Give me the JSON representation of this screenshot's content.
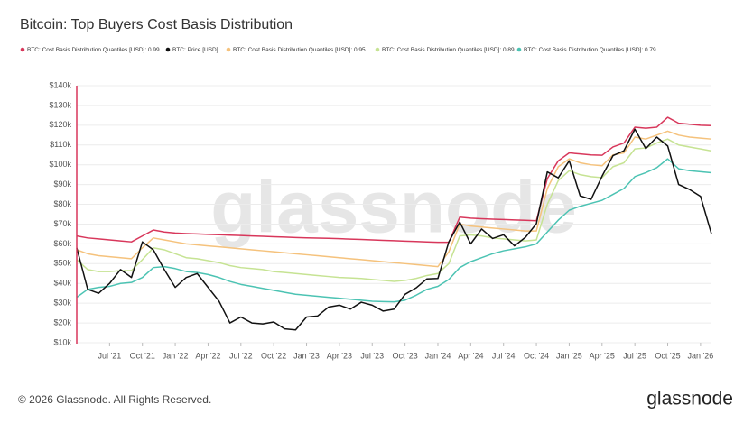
{
  "chart_data": {
    "type": "line",
    "title": "Bitcoin: Top Buyers Cost Basis Distribution",
    "watermark": "glassnode",
    "x": [
      "2021-04",
      "2021-05",
      "2021-06",
      "2021-07",
      "2021-08",
      "2021-09",
      "2021-10",
      "2021-11",
      "2021-12",
      "2022-01",
      "2022-02",
      "2022-03",
      "2022-04",
      "2022-05",
      "2022-06",
      "2022-07",
      "2022-08",
      "2022-09",
      "2022-10",
      "2022-11",
      "2022-12",
      "2023-01",
      "2023-02",
      "2023-03",
      "2023-04",
      "2023-05",
      "2023-06",
      "2023-07",
      "2023-08",
      "2023-09",
      "2023-10",
      "2023-11",
      "2023-12",
      "2024-01",
      "2024-02",
      "2024-03",
      "2024-04",
      "2024-05",
      "2024-06",
      "2024-07",
      "2024-08",
      "2024-09",
      "2024-10",
      "2024-11",
      "2024-12",
      "2025-01",
      "2025-02",
      "2025-03",
      "2025-04",
      "2025-05",
      "2025-06",
      "2025-07",
      "2025-08",
      "2025-09",
      "2025-10",
      "2025-11",
      "2025-12",
      "2026-01",
      "2026-02"
    ],
    "series": [
      {
        "name": "BTC: Cost Basis Distribution Quantiles [USD]: 0.99",
        "color": "#d8375b",
        "values": [
          64000,
          63000,
          62500,
          62000,
          61500,
          61000,
          64000,
          67000,
          66000,
          65500,
          65200,
          65000,
          64800,
          64600,
          64400,
          64200,
          64000,
          63800,
          63600,
          63400,
          63200,
          63000,
          62900,
          62800,
          62600,
          62400,
          62200,
          62000,
          61800,
          61600,
          61400,
          61200,
          61000,
          60800,
          60800,
          73500,
          73000,
          72700,
          72500,
          72300,
          72100,
          71900,
          71700,
          93000,
          102000,
          106000,
          105500,
          105000,
          104800,
          109000,
          111000,
          119000,
          118500,
          119000,
          124000,
          121000,
          120500,
          120000,
          119800
        ]
      },
      {
        "name": "BTC: Price [USD]",
        "color": "#111111",
        "values": [
          58000,
          37000,
          35000,
          40000,
          47000,
          43000,
          61000,
          57000,
          47000,
          38000,
          43000,
          45000,
          38000,
          31000,
          20000,
          23000,
          20000,
          19500,
          20500,
          17000,
          16500,
          23000,
          23500,
          28000,
          29000,
          27000,
          30500,
          29000,
          26000,
          27000,
          34500,
          37700,
          42300,
          42500,
          61000,
          71000,
          60000,
          67500,
          62700,
          64600,
          59000,
          63300,
          70200,
          96400,
          93400,
          102000,
          84300,
          82500,
          94200,
          104600,
          107100,
          118000,
          108200,
          114000,
          109500,
          90000,
          87500,
          84000,
          65000
        ]
      },
      {
        "name": "BTC: Cost Basis Distribution Quantiles [USD]: 0.95",
        "color": "#f5c27c",
        "values": [
          57000,
          55000,
          54000,
          53500,
          53000,
          52500,
          58000,
          63000,
          62000,
          61000,
          60000,
          59500,
          59000,
          58500,
          58000,
          57500,
          57000,
          56500,
          56000,
          55500,
          55000,
          54500,
          54000,
          53500,
          53000,
          52500,
          52000,
          51500,
          51000,
          50500,
          50000,
          49500,
          49000,
          48500,
          56000,
          70000,
          69000,
          68500,
          68000,
          67500,
          67000,
          66500,
          66500,
          88000,
          99000,
          103000,
          101000,
          100000,
          99500,
          105000,
          106000,
          114000,
          113000,
          115000,
          117000,
          115000,
          114000,
          113500,
          113000
        ]
      },
      {
        "name": "BTC: Cost Basis Distribution Quantiles [USD]: 0.89",
        "color": "#c6e393",
        "values": [
          52000,
          47000,
          46000,
          46000,
          46500,
          46500,
          52000,
          58000,
          57000,
          55000,
          53000,
          52500,
          51500,
          50500,
          49000,
          48000,
          47500,
          47000,
          46000,
          45500,
          45000,
          44500,
          44000,
          43500,
          43000,
          42800,
          42500,
          42000,
          41500,
          41000,
          41500,
          42500,
          44000,
          45000,
          50000,
          64000,
          64500,
          64000,
          63000,
          62500,
          62000,
          61500,
          62000,
          80000,
          92000,
          97000,
          95000,
          94000,
          93500,
          99000,
          101000,
          108000,
          108500,
          111000,
          113000,
          110000,
          109000,
          108000,
          107000
        ]
      },
      {
        "name": "BTC: Cost Basis Distribution Quantiles [USD]: 0.79",
        "color": "#4cc3b3",
        "values": [
          33000,
          37000,
          38000,
          38500,
          40000,
          40500,
          43000,
          48000,
          48500,
          47500,
          46000,
          45500,
          44500,
          43000,
          41000,
          39500,
          38500,
          37500,
          36500,
          35500,
          34500,
          34000,
          33500,
          33000,
          32500,
          32000,
          31500,
          31000,
          30800,
          30700,
          31500,
          34000,
          37000,
          38500,
          42000,
          48000,
          51000,
          53000,
          55000,
          56500,
          57500,
          58500,
          60000,
          66000,
          72000,
          77000,
          79000,
          80500,
          82000,
          85000,
          88000,
          94000,
          96000,
          98500,
          103000,
          98000,
          97000,
          96500,
          96000
        ]
      }
    ],
    "xlim": [
      "2021-04",
      "2026-02"
    ],
    "xticks": [
      {
        "value": "2021-07",
        "label": "Jul '21"
      },
      {
        "value": "2021-10",
        "label": "Oct '21"
      },
      {
        "value": "2022-01",
        "label": "Jan '22"
      },
      {
        "value": "2022-04",
        "label": "Apr '22"
      },
      {
        "value": "2022-07",
        "label": "Jul '22"
      },
      {
        "value": "2022-10",
        "label": "Oct '22"
      },
      {
        "value": "2023-01",
        "label": "Jan '23"
      },
      {
        "value": "2023-04",
        "label": "Apr '23"
      },
      {
        "value": "2023-07",
        "label": "Jul '23"
      },
      {
        "value": "2023-10",
        "label": "Oct '23"
      },
      {
        "value": "2024-01",
        "label": "Jan '24"
      },
      {
        "value": "2024-04",
        "label": "Apr '24"
      },
      {
        "value": "2024-07",
        "label": "Jul '24"
      },
      {
        "value": "2024-10",
        "label": "Oct '24"
      },
      {
        "value": "2025-01",
        "label": "Jan '25"
      },
      {
        "value": "2025-04",
        "label": "Apr '25"
      },
      {
        "value": "2025-07",
        "label": "Jul '25"
      },
      {
        "value": "2025-10",
        "label": "Oct '25"
      },
      {
        "value": "2026-01",
        "label": "Jan '26"
      }
    ],
    "ylim": [
      10000,
      140000
    ],
    "yticks": [
      {
        "value": 10000,
        "label": "$10k"
      },
      {
        "value": 20000,
        "label": "$20k"
      },
      {
        "value": 30000,
        "label": "$30k"
      },
      {
        "value": 40000,
        "label": "$40k"
      },
      {
        "value": 50000,
        "label": "$50k"
      },
      {
        "value": 60000,
        "label": "$60k"
      },
      {
        "value": 70000,
        "label": "$70k"
      },
      {
        "value": 80000,
        "label": "$80k"
      },
      {
        "value": 90000,
        "label": "$90k"
      },
      {
        "value": 100000,
        "label": "$100k"
      },
      {
        "value": 110000,
        "label": "$110k"
      },
      {
        "value": 120000,
        "label": "$120k"
      },
      {
        "value": 130000,
        "label": "$130k"
      },
      {
        "value": 140000,
        "label": "$140k"
      }
    ],
    "grid": true
  },
  "footer": {
    "copyright": "© 2026 Glassnode. All Rights Reserved.",
    "logo": "glassnode"
  }
}
